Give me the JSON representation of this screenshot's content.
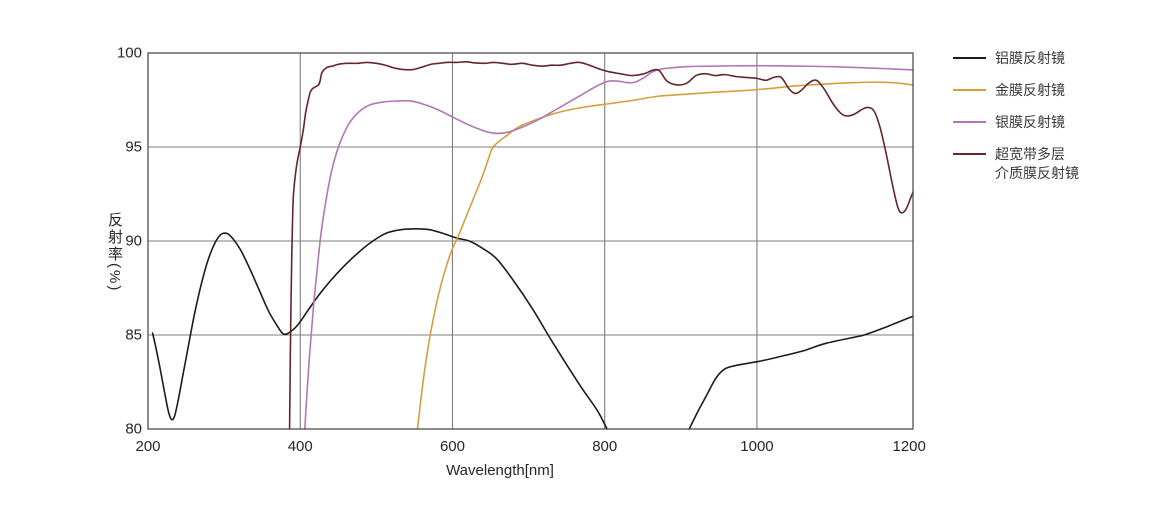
{
  "chart_data": {
    "type": "line",
    "title": "",
    "xlabel": "Wavelength[nm]",
    "ylabel": "反射率(%)",
    "xlim": [
      200,
      1205
    ],
    "ylim": [
      80,
      100
    ],
    "x_ticks": [
      200,
      400,
      600,
      800,
      1000,
      1200
    ],
    "y_ticks": [
      80,
      85,
      90,
      95,
      100
    ],
    "grid": true,
    "legend_position": "right-outside",
    "colors": {
      "background": "#ffffff",
      "grid": "#7f7f7c",
      "frame": "#4f4f4f",
      "tick_text": "#262626"
    },
    "series": [
      {
        "id": "aluminum-mirror",
        "name": "铝膜反射镜",
        "color": "#1c1c1c",
        "segments": [
          [
            [
              206,
              85.1
            ],
            [
              210,
              84.4
            ],
            [
              216,
              83.2
            ],
            [
              222,
              81.9
            ],
            [
              227,
              80.9
            ],
            [
              231,
              80.5
            ],
            [
              235,
              80.7
            ],
            [
              240,
              81.6
            ],
            [
              246,
              82.9
            ],
            [
              253,
              84.4
            ],
            [
              261,
              86.1
            ],
            [
              270,
              87.7
            ],
            [
              279,
              89.0
            ],
            [
              288,
              89.9
            ],
            [
              296,
              90.35
            ],
            [
              304,
              90.4
            ],
            [
              312,
              90.1
            ],
            [
              322,
              89.5
            ],
            [
              334,
              88.5
            ],
            [
              346,
              87.4
            ],
            [
              358,
              86.3
            ],
            [
              368,
              85.6
            ],
            [
              378,
              85.05
            ],
            [
              388,
              85.2
            ],
            [
              398,
              85.6
            ],
            [
              410,
              86.3
            ],
            [
              424,
              87.1
            ],
            [
              440,
              87.9
            ],
            [
              456,
              88.6
            ],
            [
              474,
              89.3
            ],
            [
              492,
              89.9
            ],
            [
              512,
              90.4
            ],
            [
              532,
              90.6
            ],
            [
              552,
              90.65
            ],
            [
              570,
              90.6
            ],
            [
              588,
              90.4
            ],
            [
              606,
              90.15
            ],
            [
              622,
              90.0
            ],
            [
              640,
              89.6
            ],
            [
              658,
              89.05
            ],
            [
              680,
              87.9
            ],
            [
              705,
              86.4
            ],
            [
              731,
              84.65
            ],
            [
              767,
              82.35
            ],
            [
              790,
              81.0
            ],
            [
              803,
              80.0
            ]
          ],
          [
            [
              911,
              80.0
            ],
            [
              922,
              80.9
            ],
            [
              934,
              81.8
            ],
            [
              946,
              82.7
            ],
            [
              958,
              83.2
            ],
            [
              975,
              83.4
            ],
            [
              1003,
              83.6
            ],
            [
              1030,
              83.85
            ],
            [
              1060,
              84.15
            ],
            [
              1090,
              84.55
            ],
            [
              1130,
              84.9
            ],
            [
              1141,
              85.0
            ],
            [
              1165,
              85.35
            ],
            [
              1205,
              86.0
            ]
          ]
        ]
      },
      {
        "id": "gold-mirror",
        "name": "金膜反射镜",
        "color": "#d4a03c",
        "segments": [
          [
            [
              554,
              80.0
            ],
            [
              558,
              81.4
            ],
            [
              563,
              83.0
            ],
            [
              569,
              84.6
            ],
            [
              575,
              85.9
            ],
            [
              582,
              87.2
            ],
            [
              590,
              88.4
            ],
            [
              599,
              89.5
            ],
            [
              608,
              90.3
            ],
            [
              618,
              91.3
            ],
            [
              628,
              92.3
            ],
            [
              637,
              93.2
            ],
            [
              645,
              94.1
            ],
            [
              652,
              94.9
            ],
            [
              661,
              95.3
            ],
            [
              671,
              95.6
            ],
            [
              686,
              96.05
            ],
            [
              700,
              96.3
            ],
            [
              720,
              96.6
            ],
            [
              740,
              96.85
            ],
            [
              770,
              97.1
            ],
            [
              805,
              97.3
            ],
            [
              840,
              97.5
            ],
            [
              870,
              97.7
            ],
            [
              905,
              97.8
            ],
            [
              940,
              97.9
            ],
            [
              983,
              98.0
            ],
            [
              1014,
              98.1
            ],
            [
              1050,
              98.25
            ],
            [
              1090,
              98.35
            ],
            [
              1125,
              98.42
            ],
            [
              1160,
              98.45
            ],
            [
              1185,
              98.4
            ],
            [
              1205,
              98.3
            ]
          ]
        ]
      },
      {
        "id": "silver-mirror",
        "name": "银膜反射镜",
        "color": "#b277b3",
        "segments": [
          [
            [
              406,
              80.0
            ],
            [
              409,
              82.0
            ],
            [
              412,
              83.8
            ],
            [
              415,
              85.3
            ],
            [
              418,
              86.8
            ],
            [
              421,
              88.0
            ],
            [
              425,
              89.6
            ],
            [
              429,
              90.9
            ],
            [
              434,
              92.2
            ],
            [
              440,
              93.5
            ],
            [
              447,
              94.6
            ],
            [
              455,
              95.5
            ],
            [
              465,
              96.3
            ],
            [
              478,
              96.9
            ],
            [
              492,
              97.25
            ],
            [
              510,
              97.4
            ],
            [
              530,
              97.45
            ],
            [
              545,
              97.45
            ],
            [
              560,
              97.3
            ],
            [
              580,
              97.0
            ],
            [
              600,
              96.6
            ],
            [
              620,
              96.2
            ],
            [
              635,
              95.95
            ],
            [
              648,
              95.78
            ],
            [
              660,
              95.72
            ],
            [
              672,
              95.78
            ],
            [
              685,
              95.95
            ],
            [
              700,
              96.2
            ],
            [
              715,
              96.5
            ],
            [
              730,
              96.85
            ],
            [
              745,
              97.2
            ],
            [
              760,
              97.55
            ],
            [
              775,
              97.9
            ],
            [
              790,
              98.25
            ],
            [
              805,
              98.5
            ],
            [
              818,
              98.5
            ],
            [
              830,
              98.42
            ],
            [
              840,
              98.45
            ],
            [
              852,
              98.7
            ],
            [
              863,
              99.0
            ],
            [
              875,
              99.15
            ],
            [
              890,
              99.22
            ],
            [
              910,
              99.28
            ],
            [
              940,
              99.3
            ],
            [
              980,
              99.32
            ],
            [
              1020,
              99.32
            ],
            [
              1060,
              99.3
            ],
            [
              1100,
              99.27
            ],
            [
              1150,
              99.2
            ],
            [
              1205,
              99.1
            ]
          ]
        ]
      },
      {
        "id": "dielectric-mirror",
        "name": "超宽带多层\n介质膜反射镜",
        "color": "#63262b",
        "segments": [
          [
            [
              386,
              80.0
            ],
            [
              387,
              84.0
            ],
            [
              388,
              87.0
            ],
            [
              389,
              89.5
            ],
            [
              390,
              91.3
            ],
            [
              391,
              92.4
            ],
            [
              393,
              93.3
            ],
            [
              396,
              94.2
            ],
            [
              400,
              95.0
            ],
            [
              404,
              95.9
            ],
            [
              407,
              96.8
            ],
            [
              410,
              97.4
            ],
            [
              413,
              97.9
            ],
            [
              416,
              98.1
            ],
            [
              420,
              98.2
            ],
            [
              424,
              98.3
            ],
            [
              426,
              98.5
            ],
            [
              428,
              98.9
            ],
            [
              431,
              99.1
            ],
            [
              436,
              99.25
            ],
            [
              442,
              99.3
            ],
            [
              450,
              99.4
            ],
            [
              462,
              99.45
            ],
            [
              475,
              99.45
            ],
            [
              488,
              99.5
            ],
            [
              500,
              99.45
            ],
            [
              512,
              99.35
            ],
            [
              524,
              99.2
            ],
            [
              536,
              99.12
            ],
            [
              548,
              99.12
            ],
            [
              560,
              99.25
            ],
            [
              572,
              99.4
            ],
            [
              582,
              99.45
            ],
            [
              592,
              99.5
            ],
            [
              605,
              99.5
            ],
            [
              618,
              99.53
            ],
            [
              630,
              99.47
            ],
            [
              642,
              99.45
            ],
            [
              654,
              99.5
            ],
            [
              666,
              99.45
            ],
            [
              678,
              99.4
            ],
            [
              692,
              99.45
            ],
            [
              705,
              99.35
            ],
            [
              718,
              99.3
            ],
            [
              730,
              99.35
            ],
            [
              742,
              99.35
            ],
            [
              755,
              99.45
            ],
            [
              767,
              99.5
            ],
            [
              780,
              99.35
            ],
            [
              793,
              99.15
            ],
            [
              806,
              99.0
            ],
            [
              820,
              98.9
            ],
            [
              836,
              98.8
            ],
            [
              852,
              98.9
            ],
            [
              864,
              99.1
            ],
            [
              872,
              99.05
            ],
            [
              882,
              98.5
            ],
            [
              896,
              98.3
            ],
            [
              908,
              98.4
            ],
            [
              920,
              98.8
            ],
            [
              932,
              98.9
            ],
            [
              945,
              98.8
            ],
            [
              958,
              98.85
            ],
            [
              972,
              98.75
            ],
            [
              985,
              98.7
            ],
            [
              1000,
              98.65
            ],
            [
              1012,
              98.55
            ],
            [
              1022,
              98.7
            ],
            [
              1032,
              98.7
            ],
            [
              1042,
              98.1
            ],
            [
              1050,
              97.85
            ],
            [
              1058,
              98.0
            ],
            [
              1068,
              98.4
            ],
            [
              1078,
              98.55
            ],
            [
              1088,
              98.1
            ],
            [
              1100,
              97.3
            ],
            [
              1110,
              96.8
            ],
            [
              1118,
              96.65
            ],
            [
              1128,
              96.75
            ],
            [
              1138,
              97.0
            ],
            [
              1146,
              97.1
            ],
            [
              1154,
              96.9
            ],
            [
              1162,
              96.0
            ],
            [
              1170,
              94.6
            ],
            [
              1178,
              93.0
            ],
            [
              1185,
              91.8
            ],
            [
              1190,
              91.5
            ],
            [
              1196,
              91.7
            ],
            [
              1201,
              92.2
            ],
            [
              1205,
              92.6
            ]
          ]
        ]
      }
    ]
  }
}
